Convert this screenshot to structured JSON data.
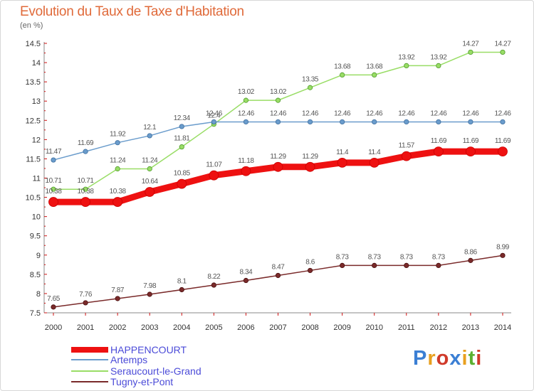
{
  "chart_data": {
    "type": "line",
    "title": "Evolution du Taux de Taxe d'Habitation",
    "subtitle": "(en %)",
    "x": [
      "2000",
      "2001",
      "2002",
      "2003",
      "2004",
      "2005",
      "2006",
      "2007",
      "2008",
      "2009",
      "2010",
      "2011",
      "2012",
      "2013",
      "2014"
    ],
    "ylim": [
      7.5,
      14.5
    ],
    "yticks": [
      "7.5",
      "8",
      "8.5",
      "9",
      "9.5",
      "10",
      "10.5",
      "11",
      "11.5",
      "12",
      "12.5",
      "13",
      "13.5",
      "14",
      "14.5"
    ],
    "grid": false,
    "legend_position": "bottom-left",
    "series": [
      {
        "name": "HAPPENCOURT",
        "color": "#ee1111",
        "values": [
          10.38,
          10.38,
          10.38,
          10.64,
          10.85,
          11.07,
          11.18,
          11.29,
          11.29,
          11.4,
          11.4,
          11.57,
          11.69,
          11.69,
          11.69
        ],
        "labels": [
          "10.38",
          "10.38",
          "10.38",
          "10.64",
          "10.85",
          "11.07",
          "11.18",
          "11.29",
          "11.29",
          "11.4",
          "11.4",
          "11.57",
          "11.69",
          "11.69",
          "11.69"
        ]
      },
      {
        "name": "Artemps",
        "color": "#6a9ccc",
        "values": [
          11.47,
          11.69,
          11.92,
          12.1,
          12.34,
          12.46,
          12.46,
          12.46,
          12.46,
          12.46,
          12.46,
          12.46,
          12.46,
          12.46,
          12.46
        ],
        "labels": [
          "11.47",
          "11.69",
          "11.92",
          "12.1",
          "12.34",
          "12.46",
          "12.46",
          "12.46",
          "12.46",
          "12.46",
          "12.46",
          "12.46",
          "12.46",
          "12.46",
          "12.46"
        ]
      },
      {
        "name": "Seraucourt-le-Grand",
        "color": "#99dd66",
        "values": [
          10.71,
          10.71,
          11.24,
          11.24,
          11.81,
          12.4,
          13.02,
          13.02,
          13.35,
          13.68,
          13.68,
          13.92,
          13.92,
          14.27,
          14.27
        ],
        "labels": [
          "10.71",
          "10.71",
          "11.24",
          "11.24",
          "11.81",
          "12.4",
          "13.02",
          "13.02",
          "13.35",
          "13.68",
          "13.68",
          "13.92",
          "13.92",
          "14.27",
          "14.27"
        ]
      },
      {
        "name": "Tugny-et-Pont",
        "color": "#7a2a2a",
        "values": [
          7.65,
          7.76,
          7.87,
          7.98,
          8.1,
          8.22,
          8.34,
          8.47,
          8.6,
          8.73,
          8.73,
          8.73,
          8.73,
          8.86,
          8.99
        ],
        "labels": [
          "7.65",
          "7.76",
          "7.87",
          "7.98",
          "8.1",
          "8.22",
          "8.34",
          "8.47",
          "8.6",
          "8.73",
          "8.73",
          "8.73",
          "8.73",
          "8.86",
          "8.99"
        ]
      }
    ]
  },
  "branding": {
    "logo_text": "Proxiti",
    "logo_colors": [
      "#3b7fd4",
      "#e8a020",
      "#d03a2a",
      "#3b7fd4",
      "#e8a020",
      "#5bb030",
      "#d03a2a"
    ]
  }
}
